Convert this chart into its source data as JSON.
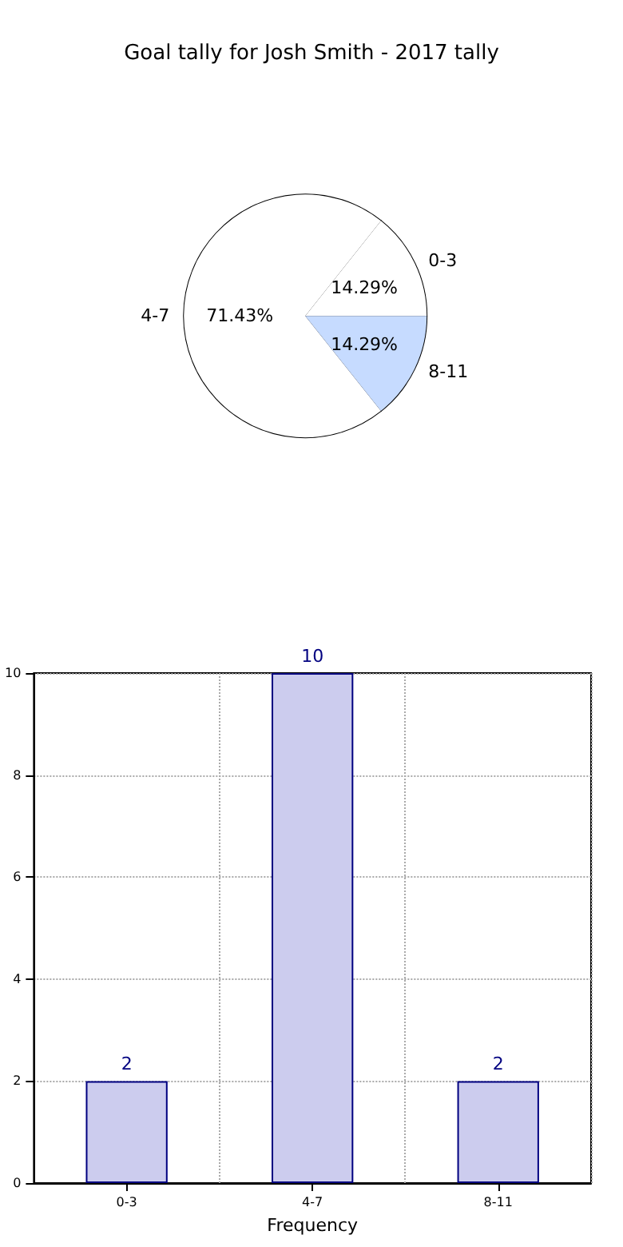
{
  "chart_data": [
    {
      "type": "pie",
      "title": "Goal tally for Josh Smith - 2017 tally",
      "categories": [
        "0-3",
        "4-7",
        "8-11"
      ],
      "values": [
        14.29,
        71.43,
        14.29
      ],
      "colors": [
        "#ffffff",
        "#ffffff",
        "#c6dbff"
      ],
      "value_labels": [
        "14.29%",
        "71.43%",
        "14.29%"
      ]
    },
    {
      "type": "bar",
      "categories": [
        "0-3",
        "4-7",
        "8-11"
      ],
      "values": [
        2,
        10,
        2
      ],
      "color": "#ccccee",
      "xlabel": "Frequency",
      "ylim": [
        0,
        10
      ],
      "yticks": [
        0,
        2,
        4,
        6,
        8,
        10
      ],
      "grid": true,
      "data_labels": true
    }
  ]
}
